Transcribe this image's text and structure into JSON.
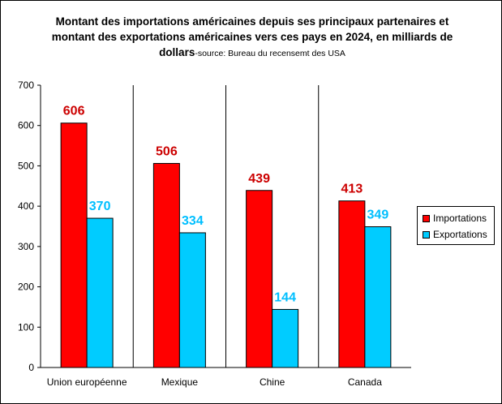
{
  "chart_data": {
    "type": "bar",
    "title": "Montant des importations américaines depuis ses principaux partenaires et montant des exportations américaines vers ces pays en 2024, en milliards de dollars",
    "subtitle": "-source: Bureau du recensemt des USA",
    "categories": [
      "Union européenne",
      "Mexique",
      "Chine",
      "Canada"
    ],
    "series": [
      {
        "name": "Importations",
        "values": [
          606,
          506,
          439,
          413
        ],
        "color": "#ff0000",
        "label_color": "#cc0000"
      },
      {
        "name": "Exportations",
        "values": [
          370,
          334,
          144,
          349
        ],
        "color": "#00ccff",
        "label_color": "#00bfff"
      }
    ],
    "ylim": [
      0,
      700
    ],
    "yticks": [
      0,
      100,
      200,
      300,
      400,
      500,
      600,
      700
    ],
    "grid": false,
    "legend_position": "right"
  }
}
